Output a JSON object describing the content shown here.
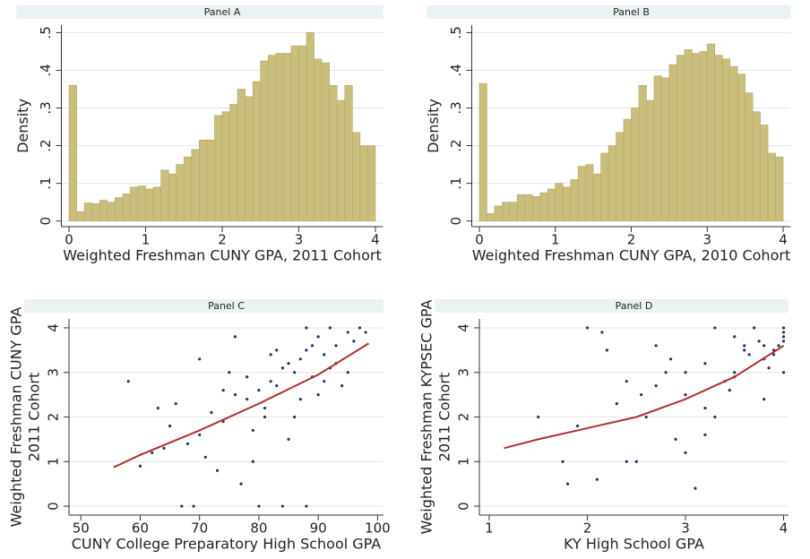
{
  "chart_data": [
    {
      "type": "histogram",
      "title": "Panel A",
      "xlabel": "Weighted Freshman CUNY GPA, 2011 Cohort",
      "ylabel": "Density",
      "color": "#c9be7d",
      "bins": [
        0,
        0.1,
        0.2,
        0.3,
        0.4,
        0.5,
        0.6,
        0.7,
        0.8,
        0.9,
        1,
        1.1,
        1.2,
        1.3,
        1.4,
        1.5,
        1.6,
        1.7,
        1.8,
        1.9,
        2,
        2.1,
        2.2,
        2.3,
        2.4,
        2.5,
        2.6,
        2.7,
        2.8,
        2.9,
        3,
        3.1,
        3.2,
        3.3,
        3.4,
        3.5,
        3.6,
        3.7,
        3.8,
        3.9,
        4
      ],
      "values": [
        0.36,
        0.025,
        0.048,
        0.046,
        0.055,
        0.05,
        0.062,
        0.072,
        0.09,
        0.093,
        0.085,
        0.09,
        0.135,
        0.125,
        0.15,
        0.17,
        0.19,
        0.215,
        0.215,
        0.28,
        0.29,
        0.31,
        0.35,
        0.33,
        0.37,
        0.425,
        0.44,
        0.445,
        0.445,
        0.465,
        0.465,
        0.5,
        0.43,
        0.42,
        0.36,
        0.32,
        0.36,
        0.235,
        0.2,
        0.2
      ],
      "xlim": [
        -0.1,
        4.1
      ],
      "xticks": [
        0,
        1,
        2,
        3,
        4
      ],
      "ylim": [
        -0.015,
        0.52
      ],
      "yticks": [
        0,
        {
          "value": 0.1,
          "label": ".1"
        },
        {
          "value": 0.2,
          "label": ".2"
        },
        {
          "value": 0.3,
          "label": ".3"
        },
        {
          "value": 0.4,
          "label": ".4"
        },
        {
          "value": 0.5,
          "label": ".5"
        }
      ],
      "grid": true
    },
    {
      "type": "histogram",
      "title": "Panel B",
      "xlabel": "Weighted Freshman CUNY GPA, 2010 Cohort",
      "ylabel": "Density",
      "color": "#c9be7d",
      "bins": [
        0,
        0.1,
        0.2,
        0.3,
        0.4,
        0.5,
        0.6,
        0.7,
        0.8,
        0.9,
        1,
        1.1,
        1.2,
        1.3,
        1.4,
        1.5,
        1.6,
        1.7,
        1.8,
        1.9,
        2,
        2.1,
        2.2,
        2.3,
        2.4,
        2.5,
        2.6,
        2.7,
        2.8,
        2.9,
        3,
        3.1,
        3.2,
        3.3,
        3.4,
        3.5,
        3.6,
        3.7,
        3.8,
        3.9,
        4
      ],
      "values": [
        0.365,
        0.02,
        0.04,
        0.05,
        0.05,
        0.07,
        0.07,
        0.065,
        0.075,
        0.085,
        0.1,
        0.09,
        0.11,
        0.145,
        0.15,
        0.125,
        0.18,
        0.2,
        0.235,
        0.27,
        0.3,
        0.36,
        0.32,
        0.385,
        0.38,
        0.415,
        0.44,
        0.455,
        0.445,
        0.45,
        0.47,
        0.44,
        0.43,
        0.41,
        0.39,
        0.34,
        0.29,
        0.255,
        0.18,
        0.17
      ],
      "xlim": [
        -0.1,
        4.1
      ],
      "xticks": [
        0,
        1,
        2,
        3,
        4
      ],
      "ylim": [
        -0.015,
        0.52
      ],
      "yticks": [
        0,
        {
          "value": 0.1,
          "label": ".1"
        },
        {
          "value": 0.2,
          "label": ".2"
        },
        {
          "value": 0.3,
          "label": ".3"
        },
        {
          "value": 0.4,
          "label": ".4"
        },
        {
          "value": 0.5,
          "label": ".5"
        }
      ],
      "grid": true
    },
    {
      "type": "scatter",
      "title": "Panel C",
      "xlabel": "CUNY College Preparatory High School GPA",
      "ylabel": [
        "Weighted Freshman CUNY GPA",
        "2011 Cohort"
      ],
      "series": [
        {
          "type": "scatter",
          "color": "#1f3864",
          "x": [
            85,
            88,
            90,
            92,
            82,
            80,
            78,
            86,
            84,
            93,
            95,
            97,
            89,
            87,
            83,
            81,
            76,
            74,
            72,
            70,
            68,
            65,
            62,
            60,
            58,
            66,
            71,
            75,
            79,
            91,
            94,
            96,
            98,
            88,
            84,
            80,
            77,
            73,
            69,
            64,
            86,
            90,
            92,
            82,
            78,
            74,
            70,
            85,
            87,
            89,
            91,
            93,
            95,
            83,
            81,
            79,
            67,
            63,
            76,
            88
          ],
          "values": [
            3.2,
            3.5,
            3.8,
            4,
            2.8,
            2.6,
            2.4,
            3,
            3.1,
            3.6,
            3.9,
            4,
            2.9,
            3.3,
            2.7,
            2.2,
            2.5,
            1.9,
            2.1,
            1.6,
            1.4,
            1.8,
            1.2,
            0.9,
            2.8,
            2.3,
            1.1,
            3,
            1.7,
            3.4,
            2.7,
            3.7,
            3.9,
            0,
            0,
            0,
            0.5,
            0.8,
            0,
            1.3,
            2,
            2.5,
            3.1,
            3.4,
            2.9,
            2.6,
            3.3,
            1.5,
            2.4,
            3.6,
            2.8,
            3.2,
            3,
            3.5,
            2,
            1,
            0,
            2.2,
            3.8,
            4
          ]
        },
        {
          "type": "line",
          "color": "#b03030",
          "x": [
            55.5,
            60,
            70,
            80,
            90,
            98.5
          ],
          "values": [
            0.87,
            1.15,
            1.7,
            2.3,
            2.95,
            3.65
          ]
        }
      ],
      "xlim": [
        48,
        101
      ],
      "xticks": [
        50,
        60,
        70,
        80,
        90,
        100
      ],
      "ylim": [
        -0.2,
        4.2
      ],
      "yticks": [
        0,
        1,
        2,
        3,
        4
      ],
      "grid": true
    },
    {
      "type": "scatter",
      "title": "Panel D",
      "xlabel": "KY High School GPA",
      "ylabel": [
        "Weighted Freshman KYPSEC GPA",
        "2011 Cohort"
      ],
      "series": [
        {
          "type": "scatter",
          "color": "#1f3864",
          "x": [
            4,
            4,
            3.9,
            3.8,
            3.7,
            3.6,
            3.5,
            3.4,
            3.3,
            3.2,
            3,
            2.8,
            2.6,
            2.4,
            2.2,
            2,
            1.8,
            4,
            3.9,
            3.8,
            3.5,
            3.2,
            3,
            2.9,
            2.7,
            2.5,
            2.3,
            2.1,
            1.9,
            1.5,
            4,
            3.95,
            3.85,
            3.75,
            3.65,
            3.45,
            3.1,
            2.85,
            2.55,
            2.15,
            1.75,
            3.6,
            3.3,
            3,
            2.7,
            2.4,
            4,
            3.8,
            3.5,
            3.2
          ],
          "values": [
            4,
            3.7,
            3.5,
            3.3,
            4,
            3.6,
            3,
            2.8,
            4,
            3.2,
            2.5,
            3,
            2,
            1,
            3.5,
            4,
            0.5,
            3.8,
            3.4,
            3.6,
            2.9,
            2.2,
            3,
            1.5,
            2.7,
            1,
            2.3,
            0.6,
            1.8,
            2,
            3.9,
            3.6,
            3.1,
            3.7,
            3.4,
            2.6,
            0.4,
            3.3,
            2.5,
            3.9,
            1,
            3.5,
            2,
            1.2,
            3.6,
            2.8,
            3,
            2.4,
            3.8,
            1.6
          ]
        },
        {
          "type": "line",
          "color": "#b03030",
          "x": [
            1.15,
            1.5,
            2,
            2.5,
            3,
            3.5,
            4
          ],
          "values": [
            1.3,
            1.5,
            1.75,
            2,
            2.4,
            2.9,
            3.6
          ]
        }
      ],
      "xlim": [
        0.9,
        4.05
      ],
      "xticks": [
        1,
        2,
        3,
        4
      ],
      "ylim": [
        -0.2,
        4.2
      ],
      "yticks": [
        0,
        1,
        2,
        3,
        4
      ],
      "grid": true
    }
  ]
}
